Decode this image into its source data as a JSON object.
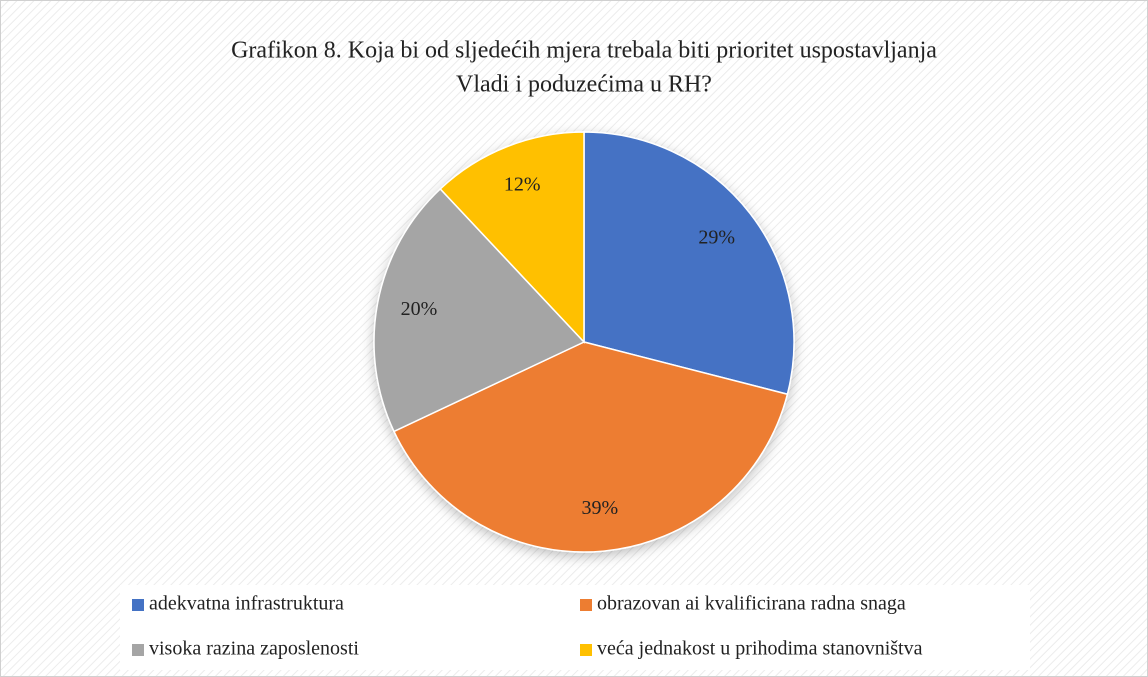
{
  "chart_data": {
    "type": "pie",
    "title": [
      "Grafikon 8. Koja bi od sljedećih mjera trebala biti prioritet uspostavljanja",
      "Vladi i poduzećima u RH?"
    ],
    "categories": [
      "adekvatna infrastruktura",
      "obrazovan ai kvalificirana radna snaga",
      "visoka razina zaposlenosti",
      "veća jednakost u prihodima stanovništva"
    ],
    "values": [
      29,
      39,
      20,
      12
    ],
    "value_labels": [
      "29%",
      "39%",
      "20%",
      "12%"
    ],
    "colors": [
      "#4472c4",
      "#ed7d31",
      "#a5a5a5",
      "#ffc000"
    ],
    "legend": "bottom"
  }
}
